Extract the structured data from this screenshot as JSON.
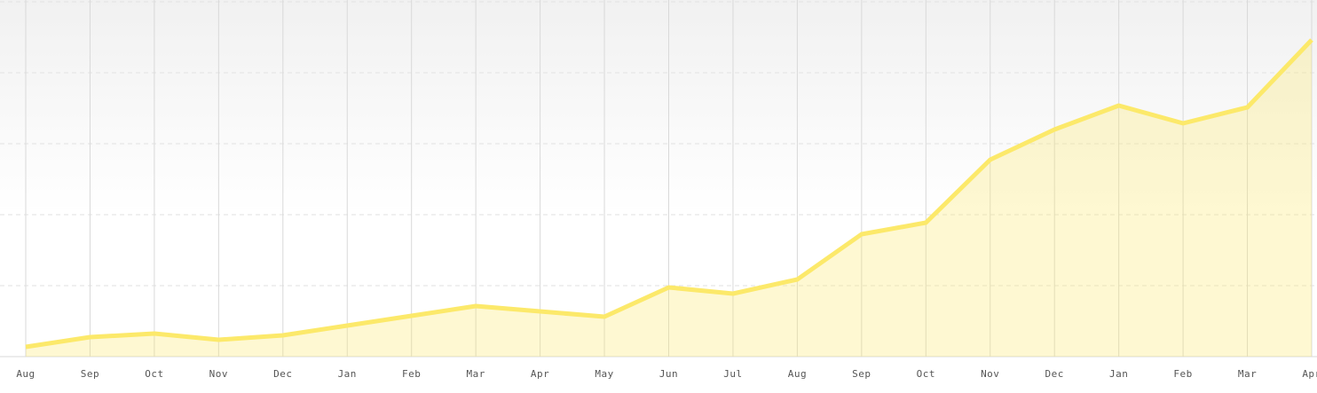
{
  "chart_data": {
    "type": "area",
    "categories": [
      "Aug",
      "Sep",
      "Oct",
      "Nov",
      "Dec",
      "Jan",
      "Feb",
      "Mar",
      "Apr",
      "May",
      "Jun",
      "Jul",
      "Aug",
      "Sep",
      "Oct",
      "Nov",
      "Dec",
      "Jan",
      "Feb",
      "Mar",
      "Apr"
    ],
    "values": [
      2.75,
      5.5,
      6.5,
      4.75,
      6,
      8.75,
      11.5,
      14.25,
      12.75,
      11.25,
      19.5,
      17.75,
      21.75,
      34.5,
      37.75,
      55.5,
      64,
      70.75,
      65.75,
      70.25,
      89.25
    ],
    "color": "#fce96a",
    "ylim": [
      0,
      100
    ],
    "yticks": [
      0,
      20,
      40,
      60,
      80,
      100
    ],
    "grid": true
  }
}
